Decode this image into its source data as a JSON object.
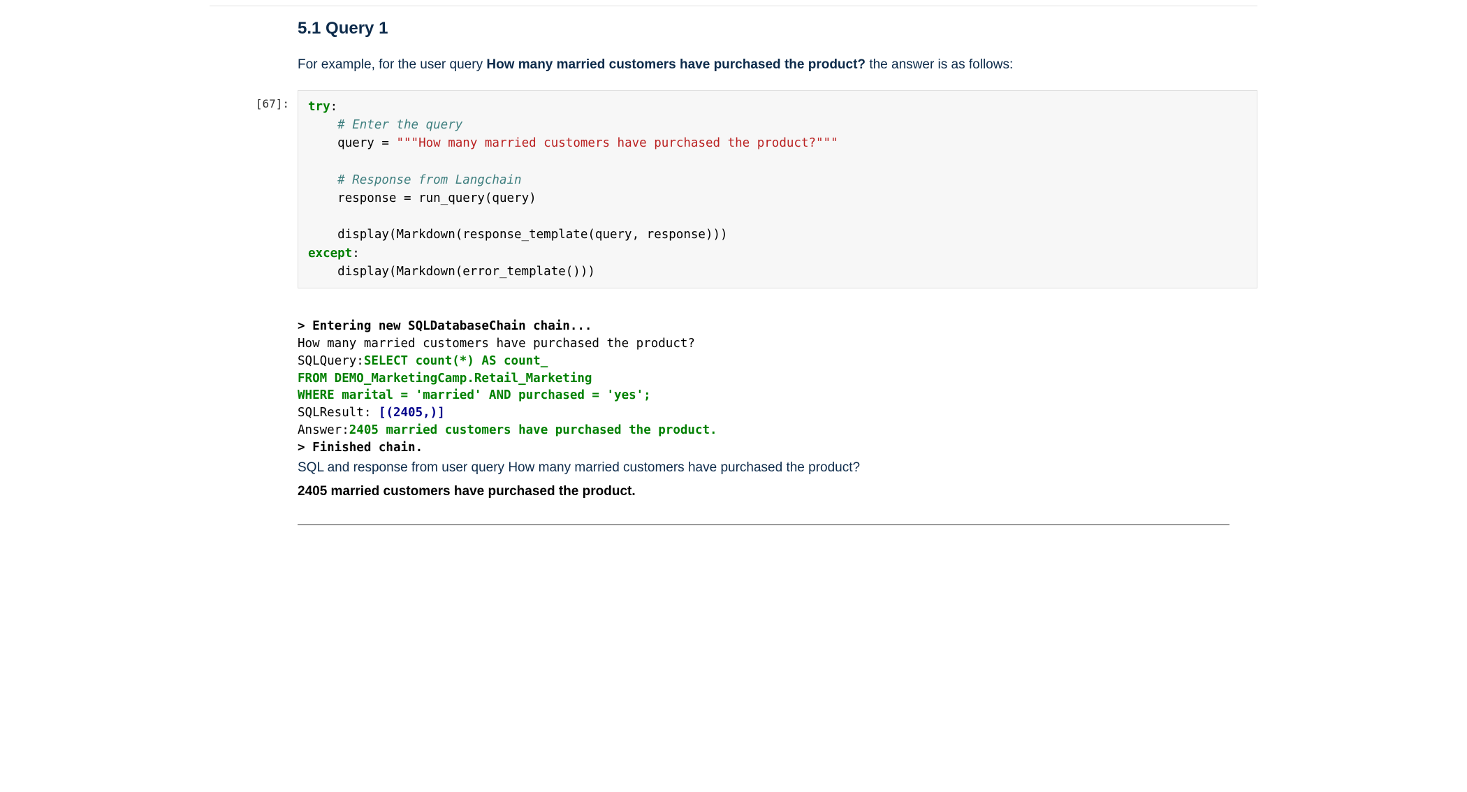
{
  "colors": {
    "heading": "#0d2b4b",
    "body_text": "#0d2b4b",
    "code_bg": "#f7f7f7",
    "code_border": "#e0e0e0",
    "keyword": "#008000",
    "comment": "#408080",
    "string": "#ba2121",
    "sql_green": "#008000",
    "navy": "#00008b",
    "page_bg": "#ffffff"
  },
  "typography": {
    "heading_fontsize": 24,
    "body_fontsize": 19,
    "code_fontsize": 17.5,
    "mono_family": "Menlo, Consolas, DejaVu Sans Mono, monospace",
    "sans_family": "-apple-system, BlinkMacSystemFont, Segoe UI, Helvetica, Arial, sans-serif"
  },
  "section": {
    "title": "5.1 Query 1",
    "intro_prefix": "For example, for the user query ",
    "intro_bold": "How many married customers have purchased the product?",
    "intro_suffix": " the answer is as follows:"
  },
  "cell": {
    "prompt": "[67]:",
    "code": {
      "l1_kw": "try",
      "l1_colon": ":",
      "l2_cm": "# Enter the query",
      "l3_a": "query ",
      "l3_b": "=",
      "l3_c": " ",
      "l3_str": "\"\"\"How many married customers have purchased the product?\"\"\"",
      "l4_cm": "# Response from Langchain",
      "l5_a": "response ",
      "l5_b": "=",
      "l5_c": " run_query(query)",
      "l6": "display(Markdown(response_template(query, response)))",
      "l7_kw": "except",
      "l7_colon": ":",
      "l8": "display(Markdown(error_template()))"
    }
  },
  "output": {
    "entering": "> Entering new SQLDatabaseChain chain...",
    "question": "How many married customers have purchased the product?",
    "sqlquery_label": "SQLQuery:",
    "sql_l1": "SELECT count(*) AS count_",
    "sql_l2": "FROM DEMO_MarketingCamp.Retail_Marketing",
    "sql_l3": "WHERE marital = 'married' AND purchased = 'yes';",
    "sqlresult_label": "SQLResult: ",
    "sqlresult_value": "[(2405,)]",
    "answer_label": "Answer:",
    "answer_value": "2405 married customers have purchased the product.",
    "finished": "> Finished chain.",
    "md_line": "SQL and response from user query How many married customers have purchased the product?",
    "md_answer": "2405 married customers have purchased the product."
  }
}
